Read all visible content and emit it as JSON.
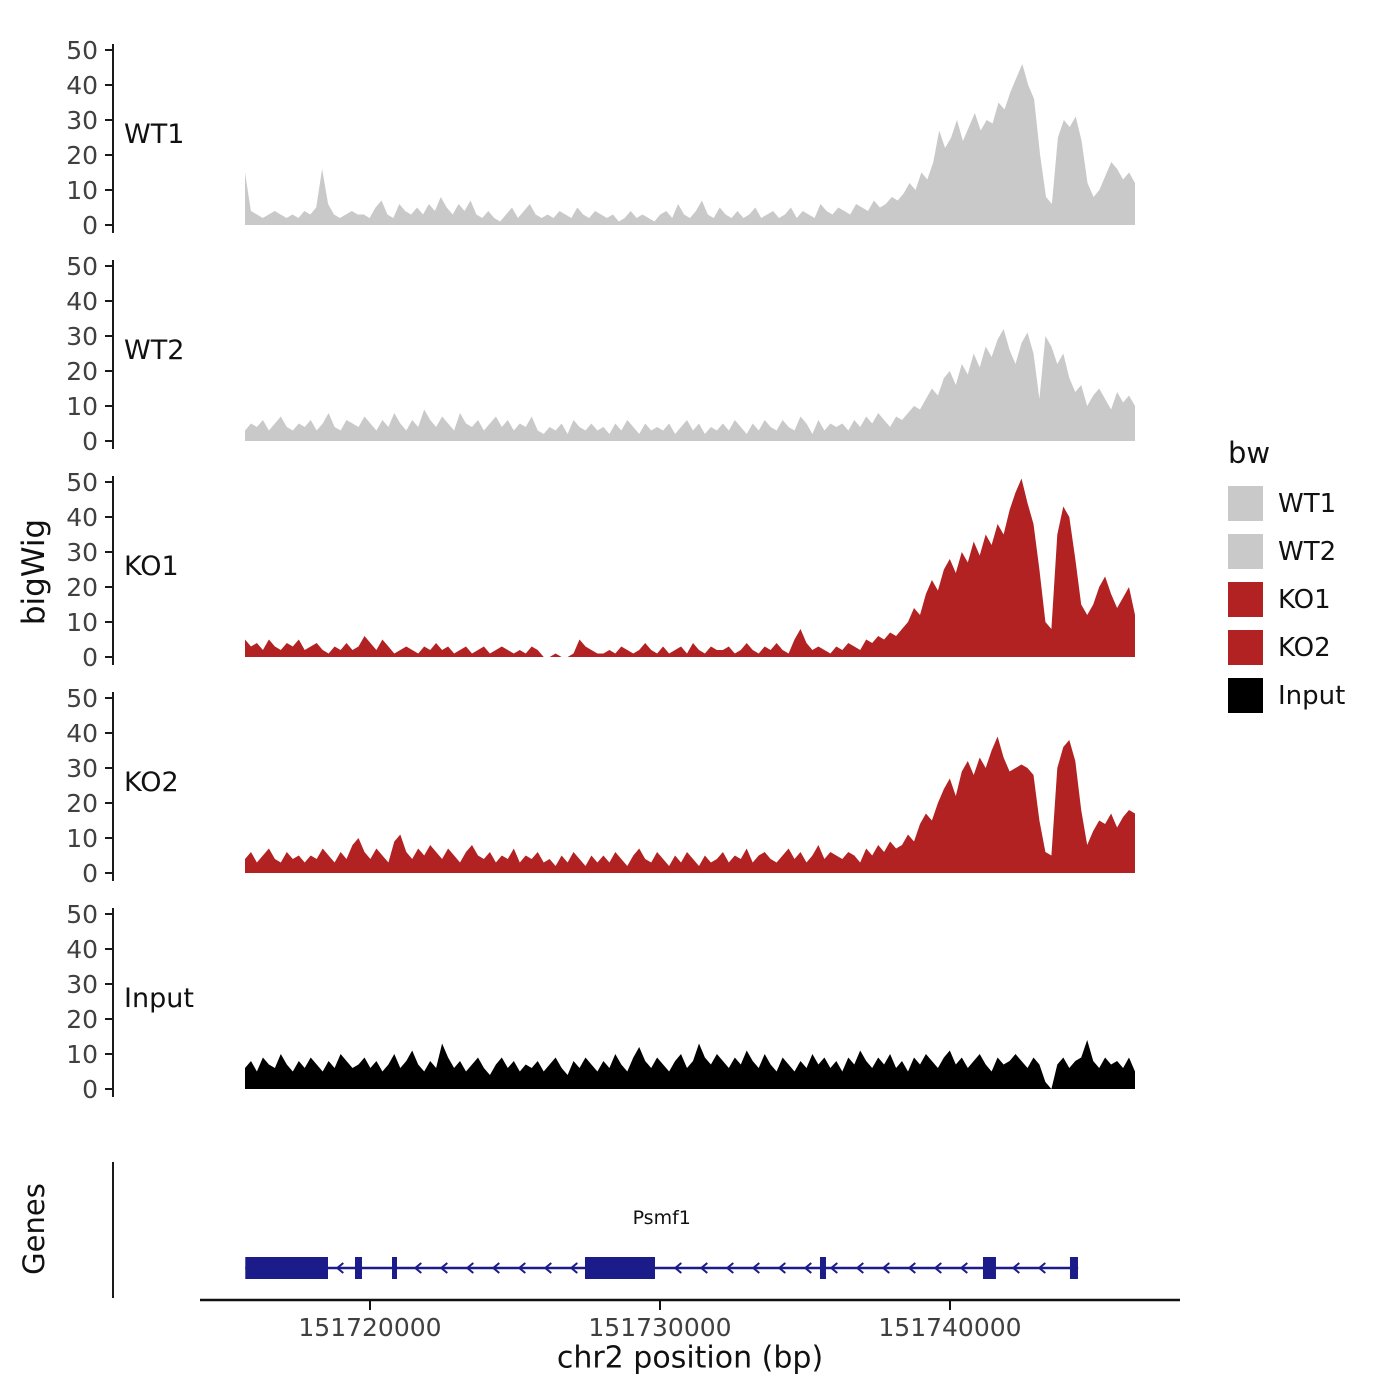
{
  "ylabel": "bigWig",
  "genes_label": "Genes",
  "xlabel": "chr2 position (bp)",
  "legend": {
    "title": "bw",
    "entries": [
      {
        "label": "WT1",
        "color": "#c9c9c9"
      },
      {
        "label": "WT2",
        "color": "#c9c9c9"
      },
      {
        "label": "KO1",
        "color": "#b22222"
      },
      {
        "label": "KO2",
        "color": "#b22222"
      },
      {
        "label": "Input",
        "color": "#000000"
      }
    ]
  },
  "chart_data": {
    "type": "area",
    "title": "",
    "xlabel": "chr2 position (bp)",
    "ylabel": "bigWig",
    "x_domain": [
      151715690,
      151746380
    ],
    "x_ticks": [
      151720000,
      151730000,
      151740000
    ],
    "y_ticks": [
      0,
      10,
      20,
      30,
      40,
      50
    ],
    "y_domain": [
      0,
      55
    ],
    "grid": false,
    "legend_position": "right",
    "tracks": [
      {
        "name": "WT1",
        "color": "#c9c9c9",
        "values": [
          15,
          4,
          3,
          2,
          3,
          4,
          3,
          2,
          3,
          2,
          4,
          3,
          5,
          16,
          6,
          3,
          2,
          3,
          4,
          3,
          3,
          2,
          5,
          7,
          3,
          2,
          6,
          4,
          3,
          5,
          3,
          6,
          4,
          8,
          5,
          3,
          6,
          4,
          7,
          3,
          2,
          4,
          2,
          1,
          3,
          5,
          2,
          4,
          6,
          3,
          2,
          3,
          2,
          4,
          3,
          2,
          5,
          3,
          2,
          4,
          3,
          2,
          3,
          1,
          2,
          4,
          2,
          3,
          2,
          1,
          3,
          4,
          2,
          6,
          3,
          2,
          4,
          7,
          3,
          2,
          5,
          3,
          2,
          4,
          2,
          3,
          5,
          2,
          3,
          4,
          2,
          3,
          5,
          2,
          4,
          3,
          2,
          6,
          4,
          3,
          5,
          4,
          3,
          6,
          5,
          4,
          7,
          5,
          6,
          8,
          7,
          9,
          12,
          10,
          15,
          13,
          18,
          27,
          22,
          25,
          30,
          24,
          28,
          32,
          27,
          30,
          29,
          35,
          33,
          38,
          42,
          46,
          40,
          36,
          20,
          8,
          6,
          25,
          30,
          28,
          31,
          24,
          12,
          8,
          10,
          14,
          18,
          16,
          13,
          15,
          12
        ]
      },
      {
        "name": "WT2",
        "color": "#c9c9c9",
        "values": [
          3,
          5,
          4,
          6,
          3,
          5,
          7,
          4,
          3,
          5,
          4,
          6,
          3,
          5,
          8,
          4,
          3,
          6,
          5,
          4,
          7,
          5,
          3,
          6,
          4,
          8,
          5,
          3,
          6,
          4,
          9,
          6,
          4,
          7,
          5,
          3,
          8,
          5,
          4,
          6,
          3,
          5,
          7,
          4,
          6,
          3,
          5,
          4,
          7,
          3,
          2,
          4,
          3,
          5,
          2,
          6,
          4,
          3,
          5,
          3,
          4,
          2,
          5,
          3,
          6,
          4,
          2,
          5,
          3,
          4,
          3,
          5,
          2,
          4,
          6,
          3,
          5,
          2,
          4,
          3,
          5,
          3,
          6,
          4,
          2,
          5,
          3,
          6,
          4,
          3,
          6,
          4,
          3,
          7,
          5,
          2,
          6,
          3,
          5,
          4,
          5,
          3,
          6,
          4,
          7,
          5,
          8,
          6,
          4,
          7,
          6,
          8,
          10,
          9,
          12,
          15,
          13,
          18,
          20,
          16,
          22,
          19,
          25,
          21,
          27,
          24,
          29,
          32,
          26,
          22,
          28,
          31,
          25,
          12,
          30,
          27,
          22,
          25,
          18,
          14,
          16,
          10,
          13,
          15,
          12,
          9,
          14,
          11,
          13,
          10
        ]
      },
      {
        "name": "KO1",
        "color": "#b22222",
        "values": [
          5,
          3,
          4,
          2,
          5,
          3,
          2,
          4,
          3,
          5,
          2,
          3,
          4,
          2,
          1,
          3,
          2,
          4,
          2,
          3,
          6,
          4,
          2,
          5,
          3,
          1,
          2,
          3,
          2,
          1,
          3,
          2,
          4,
          2,
          3,
          1,
          2,
          3,
          1,
          2,
          3,
          1,
          2,
          3,
          2,
          1,
          2,
          1,
          3,
          2,
          0,
          0,
          1,
          0,
          0,
          1,
          5,
          3,
          2,
          1,
          1,
          2,
          1,
          3,
          2,
          1,
          2,
          4,
          2,
          1,
          3,
          1,
          2,
          3,
          1,
          4,
          2,
          1,
          3,
          2,
          2,
          3,
          1,
          2,
          4,
          2,
          1,
          3,
          2,
          4,
          2,
          1,
          5,
          8,
          4,
          2,
          3,
          2,
          1,
          3,
          2,
          4,
          3,
          2,
          5,
          4,
          6,
          5,
          7,
          6,
          8,
          10,
          14,
          12,
          18,
          22,
          19,
          25,
          28,
          24,
          30,
          27,
          33,
          29,
          35,
          32,
          38,
          35,
          42,
          47,
          51,
          44,
          38,
          25,
          10,
          8,
          35,
          43,
          40,
          28,
          15,
          12,
          15,
          20,
          23,
          18,
          14,
          17,
          20,
          12
        ]
      },
      {
        "name": "KO2",
        "color": "#b22222",
        "values": [
          4,
          6,
          3,
          5,
          7,
          4,
          3,
          6,
          4,
          5,
          3,
          5,
          4,
          7,
          5,
          3,
          6,
          4,
          8,
          10,
          6,
          4,
          7,
          5,
          3,
          9,
          11,
          6,
          4,
          7,
          5,
          8,
          6,
          4,
          7,
          5,
          3,
          6,
          8,
          5,
          4,
          6,
          3,
          5,
          4,
          7,
          3,
          5,
          4,
          6,
          3,
          4,
          2,
          5,
          3,
          6,
          4,
          2,
          5,
          3,
          5,
          3,
          6,
          4,
          2,
          5,
          7,
          4,
          3,
          6,
          4,
          2,
          5,
          3,
          6,
          4,
          2,
          5,
          3,
          4,
          6,
          3,
          5,
          4,
          7,
          3,
          5,
          6,
          4,
          3,
          5,
          7,
          4,
          6,
          3,
          5,
          8,
          4,
          6,
          5,
          4,
          6,
          5,
          3,
          7,
          5,
          8,
          6,
          9,
          7,
          8,
          11,
          9,
          14,
          17,
          15,
          20,
          24,
          27,
          22,
          29,
          32,
          28,
          33,
          30,
          35,
          39,
          33,
          29,
          30,
          31,
          30,
          28,
          15,
          6,
          5,
          30,
          36,
          38,
          32,
          18,
          8,
          12,
          15,
          14,
          17,
          13,
          16,
          18,
          17
        ]
      },
      {
        "name": "Input",
        "color": "#000000",
        "values": [
          6,
          8,
          5,
          9,
          7,
          6,
          10,
          7,
          5,
          8,
          6,
          9,
          7,
          5,
          8,
          6,
          10,
          8,
          6,
          7,
          9,
          6,
          8,
          5,
          7,
          10,
          6,
          8,
          11,
          7,
          5,
          8,
          6,
          13,
          9,
          6,
          8,
          5,
          7,
          9,
          6,
          4,
          7,
          9,
          6,
          8,
          5,
          7,
          6,
          8,
          5,
          7,
          9,
          6,
          4,
          8,
          6,
          9,
          7,
          5,
          8,
          6,
          10,
          7,
          5,
          9,
          12,
          8,
          6,
          9,
          7,
          5,
          8,
          10,
          6,
          8,
          13,
          9,
          7,
          10,
          8,
          6,
          9,
          7,
          11,
          8,
          6,
          10,
          7,
          5,
          9,
          7,
          5,
          8,
          6,
          10,
          7,
          9,
          6,
          8,
          5,
          9,
          7,
          11,
          8,
          6,
          9,
          7,
          10,
          6,
          8,
          5,
          9,
          7,
          10,
          8,
          6,
          9,
          11,
          7,
          9,
          6,
          8,
          10,
          7,
          5,
          9,
          7,
          8,
          10,
          8,
          6,
          9,
          7,
          2,
          0,
          7,
          9,
          6,
          8,
          9,
          14,
          8,
          6,
          9,
          7,
          8,
          6,
          9,
          5
        ]
      }
    ],
    "gene_track": {
      "label": "Psmf1",
      "strand": "-",
      "color": "#1b1b8a",
      "start_bp": 151715700,
      "end_bp": 151744420,
      "exons_bp": [
        [
          151715700,
          151718552
        ],
        [
          151719483,
          151719724
        ],
        [
          151720759,
          151720931
        ],
        [
          151727414,
          151729828
        ],
        [
          151735517,
          151735724
        ],
        [
          151741138,
          151741586
        ],
        [
          151744138,
          151744414
        ]
      ]
    }
  }
}
